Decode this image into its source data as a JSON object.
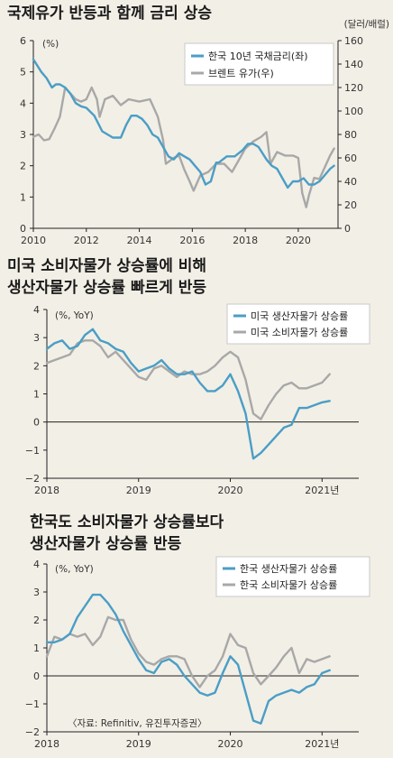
{
  "chart_data": [
    {
      "type": "line",
      "title": "국제유가 반등과 함께 금리 상승",
      "left_unit": "(%)",
      "right_unit": "(달러/배럴)",
      "xlim": [
        2010,
        2021.5
      ],
      "x_ticks": [
        2010,
        2012,
        2014,
        2016,
        2018,
        2020
      ],
      "ylim_left": [
        0,
        6
      ],
      "y_ticks_left": [
        0,
        1,
        2,
        3,
        4,
        5,
        6
      ],
      "ylim_right": [
        0,
        160
      ],
      "y_ticks_right": [
        0,
        20,
        40,
        60,
        80,
        100,
        120,
        140,
        160
      ],
      "legend_position": "top-right",
      "series": [
        {
          "name": "한국 10년 국채금리(좌)",
          "axis": "left",
          "color": "#4a9ec6",
          "x": [
            2010.0,
            2010.15,
            2010.3,
            2010.5,
            2010.7,
            2010.85,
            2011.0,
            2011.2,
            2011.4,
            2011.6,
            2011.8,
            2012.0,
            2012.3,
            2012.6,
            2012.8,
            2013.0,
            2013.3,
            2013.5,
            2013.7,
            2013.9,
            2014.1,
            2014.3,
            2014.5,
            2014.7,
            2014.9,
            2015.1,
            2015.3,
            2015.5,
            2015.7,
            2015.9,
            2016.1,
            2016.3,
            2016.5,
            2016.7,
            2016.9,
            2017.0,
            2017.3,
            2017.6,
            2017.9,
            2018.1,
            2018.3,
            2018.5,
            2018.8,
            2019.0,
            2019.2,
            2019.4,
            2019.6,
            2019.8,
            2020.0,
            2020.2,
            2020.4,
            2020.6,
            2020.8,
            2021.0,
            2021.2,
            2021.35
          ],
          "y": [
            5.4,
            5.2,
            5.0,
            4.8,
            4.5,
            4.6,
            4.6,
            4.5,
            4.3,
            4.0,
            3.9,
            3.85,
            3.6,
            3.1,
            3.0,
            2.9,
            2.9,
            3.3,
            3.6,
            3.6,
            3.5,
            3.3,
            3.0,
            2.9,
            2.6,
            2.3,
            2.2,
            2.4,
            2.3,
            2.2,
            2.0,
            1.8,
            1.4,
            1.5,
            2.1,
            2.1,
            2.3,
            2.3,
            2.5,
            2.7,
            2.7,
            2.6,
            2.2,
            2.0,
            1.9,
            1.6,
            1.3,
            1.5,
            1.5,
            1.6,
            1.4,
            1.4,
            1.5,
            1.7,
            1.9,
            2.0
          ]
        },
        {
          "name": "브렌트 유가(우)",
          "axis": "right",
          "color": "#a8a8a8",
          "x": [
            2010.0,
            2010.2,
            2010.4,
            2010.6,
            2010.8,
            2011.0,
            2011.2,
            2011.4,
            2011.6,
            2011.8,
            2012.0,
            2012.2,
            2012.4,
            2012.5,
            2012.7,
            2013.0,
            2013.3,
            2013.6,
            2014.0,
            2014.4,
            2014.5,
            2014.7,
            2014.9,
            2015.0,
            2015.3,
            2015.5,
            2015.7,
            2015.9,
            2016.05,
            2016.3,
            2016.6,
            2016.9,
            2017.2,
            2017.5,
            2017.8,
            2018.0,
            2018.3,
            2018.6,
            2018.8,
            2018.95,
            2019.2,
            2019.5,
            2019.8,
            2020.0,
            2020.15,
            2020.3,
            2020.4,
            2020.6,
            2020.8,
            2021.0,
            2021.2,
            2021.35
          ],
          "y": [
            78,
            80,
            75,
            76,
            85,
            95,
            120,
            115,
            110,
            108,
            110,
            120,
            110,
            95,
            110,
            113,
            105,
            110,
            108,
            110,
            105,
            95,
            75,
            55,
            60,
            62,
            50,
            40,
            32,
            45,
            48,
            55,
            55,
            48,
            60,
            68,
            74,
            78,
            82,
            55,
            65,
            62,
            62,
            60,
            30,
            18,
            28,
            43,
            42,
            52,
            62,
            68
          ]
        }
      ]
    },
    {
      "type": "line",
      "title_line1": "미국 소비자물가 상승률에 비해",
      "title_line2": "생산자물가 상승률 빠르게 반등",
      "unit": "(%, YoY)",
      "xlim": [
        2018,
        2021.4
      ],
      "x_ticks": [
        2018,
        2019,
        2020,
        2021
      ],
      "x_tick_labels": [
        "2018",
        "2019",
        "2020",
        "2021년"
      ],
      "ylim": [
        -2,
        4
      ],
      "y_ticks": [
        -2,
        -1,
        0,
        1,
        2,
        3,
        4
      ],
      "legend_position": "top-right",
      "series": [
        {
          "name": "미국 생산자물가 상승률",
          "color": "#4a9ec6",
          "x": [
            2018.0,
            2018.083,
            2018.167,
            2018.25,
            2018.333,
            2018.417,
            2018.5,
            2018.583,
            2018.667,
            2018.75,
            2018.833,
            2018.917,
            2019.0,
            2019.083,
            2019.167,
            2019.25,
            2019.333,
            2019.417,
            2019.5,
            2019.583,
            2019.667,
            2019.75,
            2019.833,
            2019.917,
            2020.0,
            2020.083,
            2020.167,
            2020.25,
            2020.333,
            2020.417,
            2020.5,
            2020.583,
            2020.667,
            2020.75,
            2020.833,
            2020.917,
            2021.0,
            2021.083
          ],
          "y": [
            2.6,
            2.8,
            2.9,
            2.6,
            2.7,
            3.1,
            3.3,
            2.9,
            2.8,
            2.6,
            2.5,
            2.1,
            1.8,
            1.9,
            2.0,
            2.2,
            1.9,
            1.7,
            1.7,
            1.8,
            1.4,
            1.1,
            1.1,
            1.3,
            1.7,
            1.1,
            0.3,
            -1.3,
            -1.1,
            -0.8,
            -0.5,
            -0.2,
            -0.1,
            0.5,
            0.5,
            0.6,
            0.7,
            0.75
          ]
        },
        {
          "name": "미국 소비자물가 상승률",
          "color": "#a8a8a8",
          "x": [
            2018.0,
            2018.083,
            2018.167,
            2018.25,
            2018.333,
            2018.417,
            2018.5,
            2018.583,
            2018.667,
            2018.75,
            2018.833,
            2018.917,
            2019.0,
            2019.083,
            2019.167,
            2019.25,
            2019.333,
            2019.417,
            2019.5,
            2019.583,
            2019.667,
            2019.75,
            2019.833,
            2019.917,
            2020.0,
            2020.083,
            2020.167,
            2020.25,
            2020.333,
            2020.417,
            2020.5,
            2020.583,
            2020.667,
            2020.75,
            2020.833,
            2020.917,
            2021.0,
            2021.083
          ],
          "y": [
            2.1,
            2.2,
            2.3,
            2.4,
            2.8,
            2.9,
            2.9,
            2.7,
            2.3,
            2.5,
            2.2,
            1.9,
            1.6,
            1.5,
            1.9,
            2.0,
            1.8,
            1.6,
            1.8,
            1.7,
            1.7,
            1.8,
            2.0,
            2.3,
            2.5,
            2.3,
            1.5,
            0.3,
            0.1,
            0.6,
            1.0,
            1.3,
            1.4,
            1.2,
            1.2,
            1.3,
            1.4,
            1.7
          ]
        }
      ]
    },
    {
      "type": "line",
      "title_line1": "한국도 소비자물가 상승률보다",
      "title_line2": "생산자물가 상승률 반등",
      "unit": "(%, YoY)",
      "xlim": [
        2018,
        2021.4
      ],
      "x_ticks": [
        2018,
        2019,
        2020,
        2021
      ],
      "x_tick_labels": [
        "2018",
        "2019",
        "2020",
        "2021년"
      ],
      "ylim": [
        -2,
        4
      ],
      "y_ticks": [
        -2,
        -1,
        0,
        1,
        2,
        3,
        4
      ],
      "legend_position": "top-right",
      "source": "〈자료: Refinitiv, 유진투자증권〉",
      "series": [
        {
          "name": "한국 생산자물가 상승률",
          "color": "#4a9ec6",
          "x": [
            2018.0,
            2018.083,
            2018.167,
            2018.25,
            2018.333,
            2018.417,
            2018.5,
            2018.583,
            2018.667,
            2018.75,
            2018.833,
            2018.917,
            2019.0,
            2019.083,
            2019.167,
            2019.25,
            2019.333,
            2019.417,
            2019.5,
            2019.583,
            2019.667,
            2019.75,
            2019.833,
            2019.917,
            2020.0,
            2020.083,
            2020.167,
            2020.25,
            2020.333,
            2020.417,
            2020.5,
            2020.583,
            2020.667,
            2020.75,
            2020.833,
            2020.917,
            2021.0,
            2021.083
          ],
          "y": [
            1.2,
            1.2,
            1.3,
            1.5,
            2.1,
            2.5,
            2.9,
            2.9,
            2.6,
            2.2,
            1.6,
            1.1,
            0.6,
            0.2,
            0.1,
            0.5,
            0.6,
            0.4,
            0.0,
            -0.3,
            -0.6,
            -0.7,
            -0.6,
            0.1,
            0.7,
            0.4,
            -0.6,
            -1.6,
            -1.7,
            -0.9,
            -0.7,
            -0.6,
            -0.5,
            -0.6,
            -0.4,
            -0.3,
            0.1,
            0.2
          ]
        },
        {
          "name": "한국 소비자물가 상승률",
          "color": "#a8a8a8",
          "x": [
            2018.0,
            2018.083,
            2018.167,
            2018.25,
            2018.333,
            2018.417,
            2018.5,
            2018.583,
            2018.667,
            2018.75,
            2018.833,
            2018.917,
            2019.0,
            2019.083,
            2019.167,
            2019.25,
            2019.333,
            2019.417,
            2019.5,
            2019.583,
            2019.667,
            2019.75,
            2019.833,
            2019.917,
            2020.0,
            2020.083,
            2020.167,
            2020.25,
            2020.333,
            2020.417,
            2020.5,
            2020.583,
            2020.667,
            2020.75,
            2020.833,
            2020.917,
            2021.0,
            2021.083
          ],
          "y": [
            0.7,
            1.4,
            1.3,
            1.5,
            1.4,
            1.5,
            1.1,
            1.4,
            2.1,
            2.0,
            2.0,
            1.3,
            0.8,
            0.5,
            0.4,
            0.6,
            0.7,
            0.7,
            0.6,
            0.0,
            -0.4,
            0.0,
            0.2,
            0.7,
            1.5,
            1.1,
            1.0,
            0.1,
            -0.3,
            0.0,
            0.3,
            0.7,
            1.0,
            0.1,
            0.6,
            0.5,
            0.6,
            0.7
          ]
        }
      ]
    }
  ]
}
